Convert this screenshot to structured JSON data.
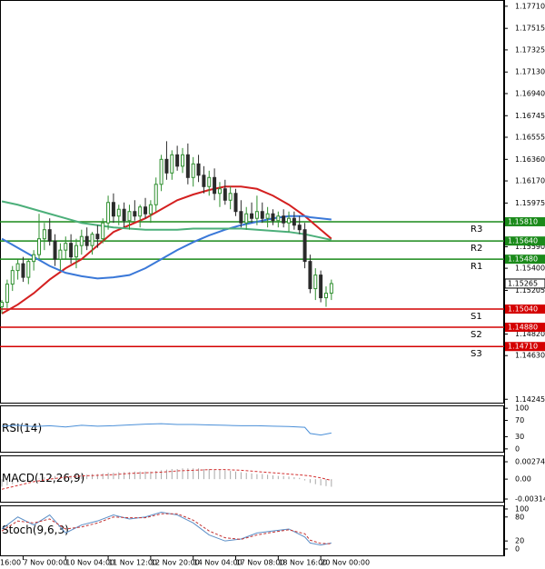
{
  "chart_data": [
    {
      "type": "candlestick",
      "up_color": "#2f8f2f",
      "down_color": "#2b2b2b",
      "open": [
        1.1506,
        1.151,
        1.1526,
        1.1538,
        1.1544,
        1.1532,
        1.1546,
        1.1552,
        1.1566,
        1.1574,
        1.1564,
        1.1548,
        1.1556,
        1.1562,
        1.155,
        1.156,
        1.1568,
        1.156,
        1.157,
        1.1566,
        1.158,
        1.1598,
        1.1586,
        1.1592,
        1.1582,
        1.159,
        1.1586,
        1.1594,
        1.1588,
        1.1596,
        1.1614,
        1.1636,
        1.1624,
        1.164,
        1.163,
        1.164,
        1.162,
        1.1632,
        1.1622,
        1.1612,
        1.162,
        1.1606,
        1.161,
        1.16,
        1.1606,
        1.159,
        1.158,
        1.1588,
        1.1584,
        1.159,
        1.1584,
        1.1588,
        1.1582,
        1.1586,
        1.158,
        1.1584,
        1.1578,
        1.1574,
        1.1546,
        1.1522,
        1.1534,
        1.1514,
        1.1518
      ],
      "high": [
        1.1512,
        1.153,
        1.1542,
        1.1548,
        1.155,
        1.1548,
        1.1556,
        1.1588,
        1.158,
        1.1584,
        1.157,
        1.1562,
        1.1568,
        1.157,
        1.1566,
        1.1574,
        1.1576,
        1.1572,
        1.1578,
        1.1584,
        1.1604,
        1.1606,
        1.1596,
        1.1598,
        1.1596,
        1.16,
        1.1596,
        1.1602,
        1.16,
        1.162,
        1.164,
        1.1652,
        1.1644,
        1.1648,
        1.1646,
        1.165,
        1.1638,
        1.164,
        1.163,
        1.1626,
        1.1628,
        1.1616,
        1.1618,
        1.1612,
        1.161,
        1.16,
        1.1594,
        1.1598,
        1.1604,
        1.1598,
        1.1594,
        1.1592,
        1.159,
        1.1592,
        1.159,
        1.159,
        1.1586,
        1.158,
        1.1552,
        1.154,
        1.1538,
        1.1524,
        1.153
      ],
      "low": [
        1.15,
        1.1505,
        1.152,
        1.153,
        1.1528,
        1.1526,
        1.1538,
        1.1548,
        1.1556,
        1.156,
        1.1542,
        1.1538,
        1.1548,
        1.1544,
        1.154,
        1.1552,
        1.1556,
        1.1552,
        1.1558,
        1.1562,
        1.1574,
        1.158,
        1.1578,
        1.1576,
        1.1574,
        1.1582,
        1.1576,
        1.1584,
        1.158,
        1.159,
        1.1608,
        1.1618,
        1.1618,
        1.1626,
        1.1624,
        1.1614,
        1.1612,
        1.1616,
        1.1606,
        1.1604,
        1.16,
        1.1594,
        1.1596,
        1.1592,
        1.1586,
        1.1576,
        1.1574,
        1.158,
        1.1578,
        1.158,
        1.1576,
        1.1578,
        1.1576,
        1.1576,
        1.1572,
        1.1574,
        1.157,
        1.154,
        1.1518,
        1.1512,
        1.151,
        1.1506,
        1.1512
      ],
      "close": [
        1.151,
        1.1526,
        1.1538,
        1.1544,
        1.1532,
        1.1546,
        1.1552,
        1.1566,
        1.1574,
        1.1564,
        1.1548,
        1.1556,
        1.1562,
        1.155,
        1.156,
        1.1568,
        1.156,
        1.157,
        1.1566,
        1.158,
        1.1598,
        1.1586,
        1.1592,
        1.1582,
        1.159,
        1.1586,
        1.1594,
        1.1588,
        1.1596,
        1.1614,
        1.1636,
        1.1624,
        1.164,
        1.163,
        1.164,
        1.162,
        1.1632,
        1.1622,
        1.1612,
        1.162,
        1.1606,
        1.161,
        1.16,
        1.1606,
        1.159,
        1.158,
        1.1588,
        1.1584,
        1.159,
        1.1584,
        1.1588,
        1.1582,
        1.1586,
        1.158,
        1.1584,
        1.1578,
        1.1574,
        1.1546,
        1.1522,
        1.1534,
        1.1514,
        1.1518,
        1.15265
      ],
      "lines": [
        {
          "color": "#d42020",
          "x": [
            0,
            3,
            6,
            9,
            12,
            15,
            18,
            21,
            24,
            27,
            30,
            33,
            36,
            39,
            42,
            45,
            48,
            51,
            54,
            57,
            58,
            60,
            62
          ],
          "values": [
            1.15,
            1.1508,
            1.1518,
            1.153,
            1.154,
            1.1548,
            1.156,
            1.1572,
            1.1578,
            1.1584,
            1.1592,
            1.16,
            1.1605,
            1.1609,
            1.1612,
            1.1612,
            1.161,
            1.1604,
            1.1596,
            1.1586,
            1.1582,
            1.1574,
            1.1566
          ]
        },
        {
          "color": "#3a78d8",
          "x": [
            0,
            3,
            6,
            9,
            12,
            15,
            18,
            21,
            24,
            27,
            30,
            33,
            36,
            39,
            42,
            45,
            48,
            51,
            54,
            57,
            58,
            60,
            62
          ],
          "values": [
            1.1566,
            1.1558,
            1.155,
            1.1542,
            1.1536,
            1.1533,
            1.1531,
            1.1532,
            1.1534,
            1.154,
            1.1548,
            1.1556,
            1.1563,
            1.1569,
            1.1574,
            1.1578,
            1.1581,
            1.1584,
            1.1586,
            1.1586,
            1.1585,
            1.1584,
            1.1583
          ]
        },
        {
          "color": "#4caf7a",
          "x": [
            0,
            3,
            6,
            9,
            12,
            15,
            18,
            21,
            24,
            27,
            30,
            33,
            36,
            39,
            42,
            45,
            48,
            51,
            54,
            57,
            58,
            60,
            62
          ],
          "values": [
            1.1599,
            1.1596,
            1.1592,
            1.1588,
            1.1584,
            1.158,
            1.1578,
            1.1576,
            1.1575,
            1.1574,
            1.1574,
            1.1574,
            1.1575,
            1.1575,
            1.1575,
            1.1575,
            1.1574,
            1.1573,
            1.1572,
            1.157,
            1.1569,
            1.1567,
            1.1565
          ]
        }
      ],
      "levels": [
        {
          "name": "R3",
          "value": 1.1581,
          "label": "1.15810",
          "color": "#1a8a1a"
        },
        {
          "name": "R2",
          "value": 1.1564,
          "label": "1.15640",
          "color": "#1a8a1a"
        },
        {
          "name": "R1",
          "value": 1.1548,
          "label": "1.15480",
          "color": "#1a8a1a"
        },
        {
          "name": "S1",
          "value": 1.1504,
          "label": "1.15040",
          "color": "#d40000"
        },
        {
          "name": "S2",
          "value": 1.1488,
          "label": "1.14880",
          "color": "#d40000"
        },
        {
          "name": "S3",
          "value": 1.1471,
          "label": "1.14710",
          "color": "#d40000"
        }
      ],
      "current": 1.15265,
      "xlim": [
        -0.35,
        94.5
      ],
      "xticks": [
        {
          "value": -4,
          "label": "16:00"
        },
        {
          "value": 4,
          "label": "7 Nov 00:00"
        },
        {
          "value": 12,
          "label": "10 Nov 04:00"
        },
        {
          "value": 20,
          "label": "11 Nov 12:00"
        },
        {
          "value": 28,
          "label": "12 Nov 20:00"
        },
        {
          "value": 36,
          "label": "14 Nov 04:00"
        },
        {
          "value": 44,
          "label": "17 Nov 08:00"
        },
        {
          "value": 52,
          "label": "18 Nov 16:00"
        },
        {
          "value": 60,
          "label": "20 Nov 00:00"
        }
      ],
      "ylim": [
        1.14215,
        1.17765
      ],
      "yticks": [
        {
          "value": 1.1771,
          "label": "1.17710"
        },
        1.17515,
        1.17325,
        {
          "value": 1.1713,
          "label": "1.17130"
        },
        {
          "value": 1.1694,
          "label": "1.16940"
        },
        1.16745,
        1.16555,
        {
          "value": 1.1636,
          "label": "1.16360"
        },
        {
          "value": 1.1617,
          "label": "1.16170"
        },
        1.15975,
        {
          "value": 1.1559,
          "label": "1.15590"
        },
        {
          "value": 1.154,
          "label": "1.15400"
        },
        1.15205,
        {
          "value": 1.1482,
          "label": "1.14820"
        },
        {
          "value": 1.1463,
          "label": "1.14630"
        },
        1.14245
      ]
    },
    {
      "type": "line",
      "title": "RSI(14)",
      "series": [
        {
          "color": "#4a8fd8",
          "x": [
            0,
            3,
            6,
            9,
            12,
            15,
            18,
            21,
            24,
            27,
            30,
            33,
            36,
            39,
            42,
            45,
            48,
            51,
            54,
            57,
            58,
            60,
            62
          ],
          "values": [
            56,
            58,
            55,
            57,
            54,
            58,
            56,
            57,
            59,
            61,
            62,
            60,
            60,
            59,
            58,
            57,
            57,
            56,
            55,
            53,
            38,
            34,
            39
          ]
        }
      ],
      "ylim": [
        -7,
        107
      ],
      "yticks": [
        100,
        70,
        30,
        0
      ]
    },
    {
      "type": "macd",
      "title": "MACD(12,26,9)",
      "bar_color": "#a8a8a8",
      "values": [
        -0.0012,
        -0.001,
        -0.0008,
        -0.0006,
        -0.0004,
        -0.0002,
        0.0,
        0.0001,
        0.0003,
        0.0004,
        0.0005,
        0.0005,
        0.0006,
        0.0006,
        0.0007,
        0.0007,
        0.0007,
        0.0008,
        0.0008,
        0.0009,
        0.001,
        0.001,
        0.0011,
        0.0011,
        0.0011,
        0.0012,
        0.0012,
        0.0012,
        0.0012,
        0.0013,
        0.0014,
        0.0015,
        0.0016,
        0.0016,
        0.0017,
        0.0017,
        0.0017,
        0.0017,
        0.0016,
        0.0016,
        0.0015,
        0.0015,
        0.0014,
        0.0013,
        0.0012,
        0.0011,
        0.001,
        0.0009,
        0.0008,
        0.0008,
        0.0007,
        0.0006,
        0.0005,
        0.0005,
        0.0004,
        0.0003,
        0.0002,
        -0.0002,
        -0.0006,
        -0.0008,
        -0.001,
        -0.0011,
        -0.0012
      ],
      "series": [
        {
          "color": "#d33030",
          "dashed": true,
          "x": [
            0,
            3,
            6,
            9,
            12,
            15,
            18,
            21,
            24,
            27,
            30,
            33,
            36,
            39,
            42,
            45,
            48,
            51,
            54,
            57,
            58,
            60,
            62
          ],
          "values": [
            -0.0016,
            -0.001,
            -0.0004,
            0.0,
            0.0003,
            0.0005,
            0.0006,
            0.0007,
            0.0009,
            0.001,
            0.0011,
            0.0013,
            0.0014,
            0.0015,
            0.0015,
            0.0014,
            0.0012,
            0.001,
            0.0008,
            0.0006,
            0.0005,
            0.0002,
            -0.0002
          ]
        }
      ],
      "ylim": [
        -0.00357,
        0.00375
      ],
      "yticks": [
        0.002742,
        {
          "value": 0,
          "label": "0.00"
        },
        -0.003142
      ]
    },
    {
      "type": "line",
      "title": "Stoch(9,6,3)",
      "series": [
        {
          "color": "#5b8fc7",
          "x": [
            0,
            3,
            6,
            9,
            12,
            15,
            18,
            21,
            24,
            27,
            30,
            33,
            36,
            39,
            42,
            45,
            48,
            51,
            54,
            57,
            58,
            60,
            62
          ],
          "values": [
            50,
            80,
            60,
            85,
            40,
            60,
            70,
            85,
            75,
            80,
            92,
            85,
            65,
            35,
            20,
            25,
            40,
            45,
            50,
            30,
            15,
            10,
            15
          ]
        },
        {
          "color": "#c33333",
          "dashed": true,
          "x": [
            0,
            3,
            6,
            9,
            12,
            15,
            18,
            21,
            24,
            27,
            30,
            33,
            36,
            39,
            42,
            45,
            48,
            51,
            54,
            57,
            58,
            60,
            62
          ],
          "values": [
            45,
            70,
            65,
            75,
            50,
            55,
            65,
            80,
            78,
            78,
            88,
            88,
            72,
            45,
            28,
            24,
            35,
            42,
            48,
            38,
            22,
            14,
            13
          ]
        }
      ],
      "ylim": [
        -16,
        109
      ],
      "yticks": [
        100,
        80,
        20,
        0
      ]
    }
  ]
}
